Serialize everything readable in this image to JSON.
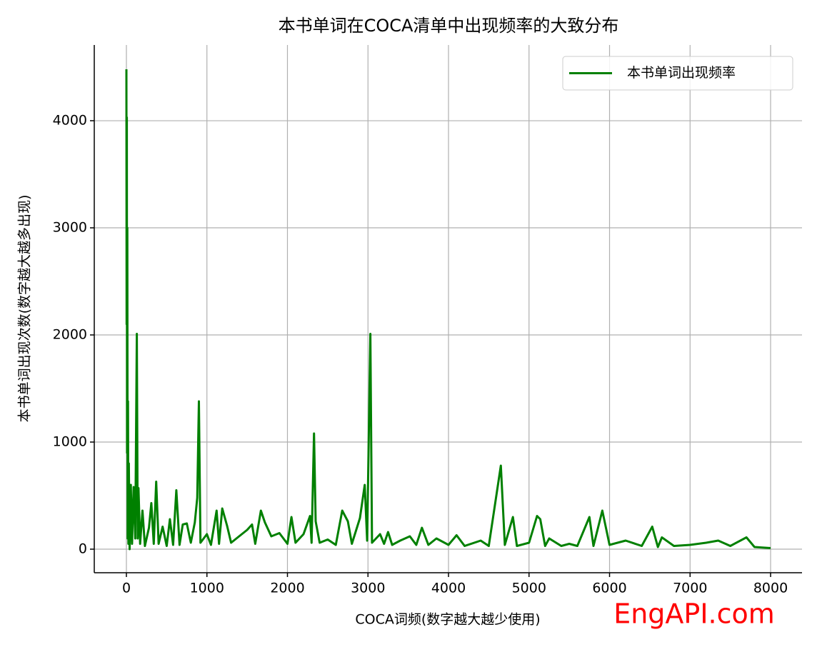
{
  "chart_data": {
    "type": "line",
    "title": "本书单词在COCA清单中出现频率的大致分布",
    "xlabel": "COCA词频(数字越大越少使用)",
    "ylabel": "本书单词出现次数(数字越大越多出现)",
    "watermark": "EngAPI.com",
    "xlim": [
      -399,
      8390
    ],
    "ylim": [
      -220,
      4707
    ],
    "xticks": [
      0,
      1000,
      2000,
      3000,
      4000,
      5000,
      6000,
      7000,
      8000
    ],
    "yticks": [
      0,
      1000,
      2000,
      3000,
      4000
    ],
    "grid": true,
    "legend": "upper right",
    "x": [
      0,
      3,
      5,
      8,
      12,
      15,
      20,
      25,
      30,
      40,
      55,
      70,
      90,
      110,
      130,
      140,
      150,
      170,
      200,
      230,
      280,
      310,
      340,
      370,
      400,
      450,
      500,
      540,
      580,
      620,
      660,
      700,
      750,
      800,
      850,
      880,
      900,
      920,
      1000,
      1050,
      1120,
      1150,
      1190,
      1250,
      1300,
      1400,
      1500,
      1560,
      1600,
      1670,
      1720,
      1800,
      1900,
      2000,
      2050,
      2100,
      2200,
      2280,
      2300,
      2330,
      2350,
      2400,
      2500,
      2600,
      2680,
      2750,
      2800,
      2900,
      2960,
      2990,
      3030,
      3050,
      3150,
      3200,
      3250,
      3300,
      3400,
      3520,
      3600,
      3670,
      3750,
      3850,
      4000,
      4100,
      4200,
      4400,
      4500,
      4650,
      4700,
      4800,
      4850,
      5000,
      5100,
      5140,
      5200,
      5250,
      5400,
      5500,
      5600,
      5750,
      5800,
      5910,
      6000,
      6200,
      6400,
      6530,
      6600,
      6650,
      6800,
      7000,
      7200,
      7350,
      7500,
      7700,
      7800,
      8000
    ],
    "series": [
      {
        "name": "本书单词出现频率",
        "color": "#008000",
        "values": [
          4480,
          2100,
          4030,
          900,
          3000,
          100,
          1380,
          50,
          800,
          0,
          600,
          50,
          580,
          100,
          2010,
          100,
          570,
          50,
          360,
          30,
          200,
          430,
          50,
          630,
          50,
          210,
          30,
          280,
          40,
          550,
          40,
          230,
          240,
          60,
          250,
          480,
          1380,
          60,
          140,
          40,
          360,
          50,
          380,
          220,
          60,
          120,
          180,
          230,
          50,
          360,
          250,
          120,
          150,
          50,
          300,
          60,
          140,
          310,
          60,
          1080,
          260,
          60,
          90,
          40,
          360,
          260,
          50,
          290,
          600,
          80,
          2010,
          60,
          140,
          50,
          160,
          40,
          80,
          120,
          40,
          200,
          40,
          100,
          40,
          130,
          30,
          80,
          30,
          780,
          40,
          300,
          30,
          60,
          310,
          280,
          30,
          100,
          30,
          50,
          30,
          300,
          30,
          360,
          40,
          80,
          30,
          210,
          20,
          110,
          30,
          40,
          60,
          80,
          30,
          110,
          20,
          10
        ]
      }
    ]
  }
}
